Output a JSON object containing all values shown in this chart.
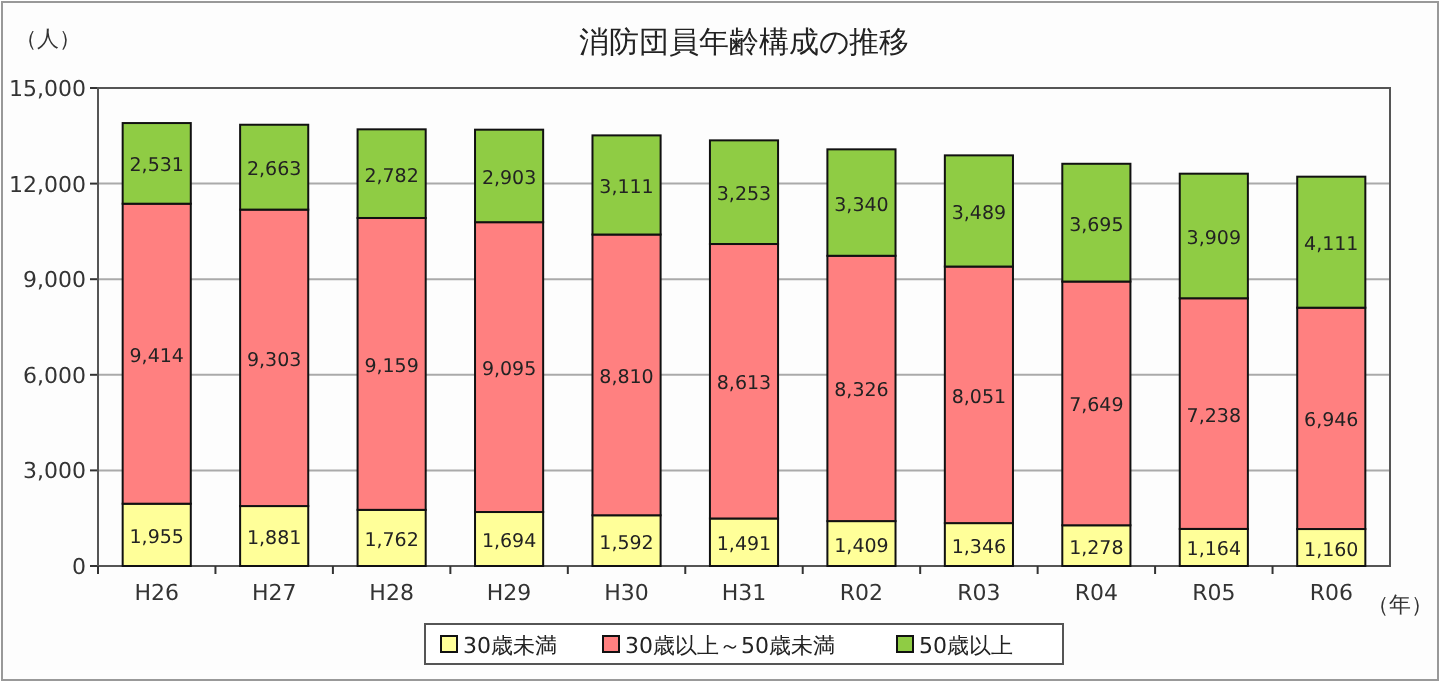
{
  "chart_data": {
    "type": "bar",
    "title": "消防団員年齢構成の推移",
    "ylabel": "（人）",
    "xlabel": "（年）",
    "categories": [
      "H26",
      "H27",
      "H28",
      "H29",
      "H30",
      "H31",
      "R02",
      "R03",
      "R04",
      "R05",
      "R06"
    ],
    "stacked": true,
    "grid": "y",
    "legend": "bottom",
    "ylim": [
      0,
      15000
    ],
    "yticks": [
      {
        "value": 0,
        "label": "0"
      },
      {
        "value": 3000,
        "label": "3,000"
      },
      {
        "value": 6000,
        "label": "6,000"
      },
      {
        "value": 9000,
        "label": "9,000"
      },
      {
        "value": 12000,
        "label": "12,000"
      },
      {
        "value": 15000,
        "label": "15,000"
      }
    ],
    "series": [
      {
        "name": "30歳未満",
        "color": "#ffff99",
        "values": [
          1955,
          1881,
          1762,
          1694,
          1592,
          1491,
          1409,
          1346,
          1278,
          1164,
          1160
        ],
        "value_labels": [
          "1,955",
          "1,881",
          "1,762",
          "1,694",
          "1,592",
          "1,491",
          "1,409",
          "1,346",
          "1,278",
          "1,164",
          "1,160"
        ]
      },
      {
        "name": "30歳以上～50歳未満",
        "color": "#ff8080",
        "values": [
          9414,
          9303,
          9159,
          9095,
          8810,
          8613,
          8326,
          8051,
          7649,
          7238,
          6946
        ],
        "value_labels": [
          "9,414",
          "9,303",
          "9,159",
          "9,095",
          "8,810",
          "8,613",
          "8,326",
          "8,051",
          "7,649",
          "7,238",
          "6,946"
        ]
      },
      {
        "name": "50歳以上",
        "color": "#8fcc44",
        "values": [
          2531,
          2663,
          2782,
          2903,
          3111,
          3253,
          3340,
          3489,
          3695,
          3909,
          4111
        ],
        "value_labels": [
          "2,531",
          "2,663",
          "2,782",
          "2,903",
          "3,111",
          "3,253",
          "3,340",
          "3,489",
          "3,695",
          "3,909",
          "4,111"
        ]
      }
    ]
  }
}
